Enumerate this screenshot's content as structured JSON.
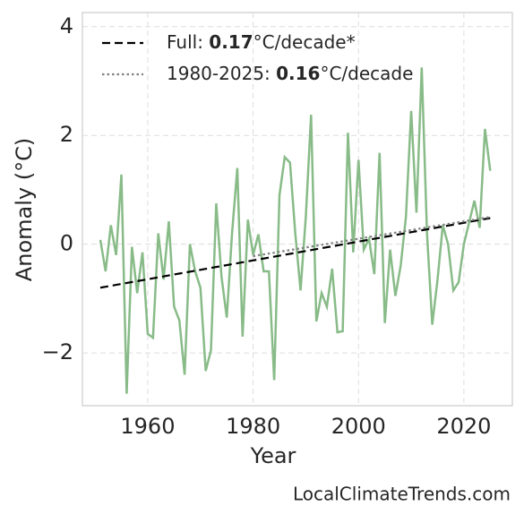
{
  "chart_data": {
    "type": "line",
    "xlabel": "Year",
    "ylabel": "Anomaly (°C)",
    "source": "LocalClimateTrends.com",
    "x": [
      1951,
      1952,
      1953,
      1954,
      1955,
      1956,
      1957,
      1958,
      1959,
      1960,
      1961,
      1962,
      1963,
      1964,
      1965,
      1966,
      1967,
      1968,
      1969,
      1970,
      1971,
      1972,
      1973,
      1974,
      1975,
      1976,
      1977,
      1978,
      1979,
      1980,
      1981,
      1982,
      1983,
      1984,
      1985,
      1986,
      1987,
      1988,
      1989,
      1990,
      1991,
      1992,
      1993,
      1994,
      1995,
      1996,
      1997,
      1998,
      1999,
      2000,
      2001,
      2002,
      2003,
      2004,
      2005,
      2006,
      2007,
      2008,
      2009,
      2010,
      2011,
      2012,
      2013,
      2014,
      2015,
      2016,
      2017,
      2018,
      2019,
      2020,
      2021,
      2022,
      2023,
      2024,
      2025
    ],
    "series": [
      {
        "color": "#88bb88",
        "values": [
          0.08,
          -0.5,
          0.35,
          -0.2,
          1.28,
          -2.75,
          -0.05,
          -0.9,
          -0.15,
          -1.65,
          -1.72,
          0.2,
          -0.65,
          0.42,
          -1.15,
          -1.4,
          -2.4,
          0.0,
          -0.5,
          -0.8,
          -2.33,
          -1.95,
          0.75,
          -0.6,
          -1.35,
          0.2,
          1.4,
          -1.7,
          0.45,
          -0.2,
          0.18,
          -0.5,
          -0.5,
          -2.5,
          0.9,
          1.6,
          1.5,
          0.2,
          -0.85,
          0.5,
          2.38,
          -1.42,
          -0.9,
          -1.15,
          -0.45,
          -1.62,
          -1.6,
          2.05,
          -0.15,
          1.55,
          -0.1,
          0.1,
          -0.55,
          1.68,
          -1.45,
          -0.1,
          -0.95,
          -0.4,
          0.5,
          2.45,
          0.58,
          3.25,
          0.2,
          -1.48,
          -0.65,
          0.35,
          0.0,
          -0.85,
          -0.7,
          0.0,
          0.4,
          0.8,
          0.3,
          2.12,
          1.35
        ]
      }
    ],
    "trends": [
      {
        "name": [
          "Full: ",
          "0.17",
          "°C/decade*"
        ],
        "color": "#000000",
        "style": "dashed",
        "x": [
          1951,
          2025
        ],
        "values": [
          -0.8,
          0.48
        ]
      },
      {
        "name": [
          "1980-2025: ",
          "0.16",
          "°C/decade"
        ],
        "color": "#808080",
        "style": "dotted",
        "x": [
          1980,
          2025
        ],
        "values": [
          -0.22,
          0.5
        ]
      }
    ],
    "xlim": [
      1947.6,
      2029.2
    ],
    "ylim": [
      -2.97,
      4.26
    ],
    "xticks": [
      1960,
      1980,
      2000,
      2020
    ],
    "yticks": [
      {
        "value": -2,
        "label": "−2"
      },
      0,
      2,
      4
    ],
    "grid": true,
    "legend": "upper left"
  }
}
